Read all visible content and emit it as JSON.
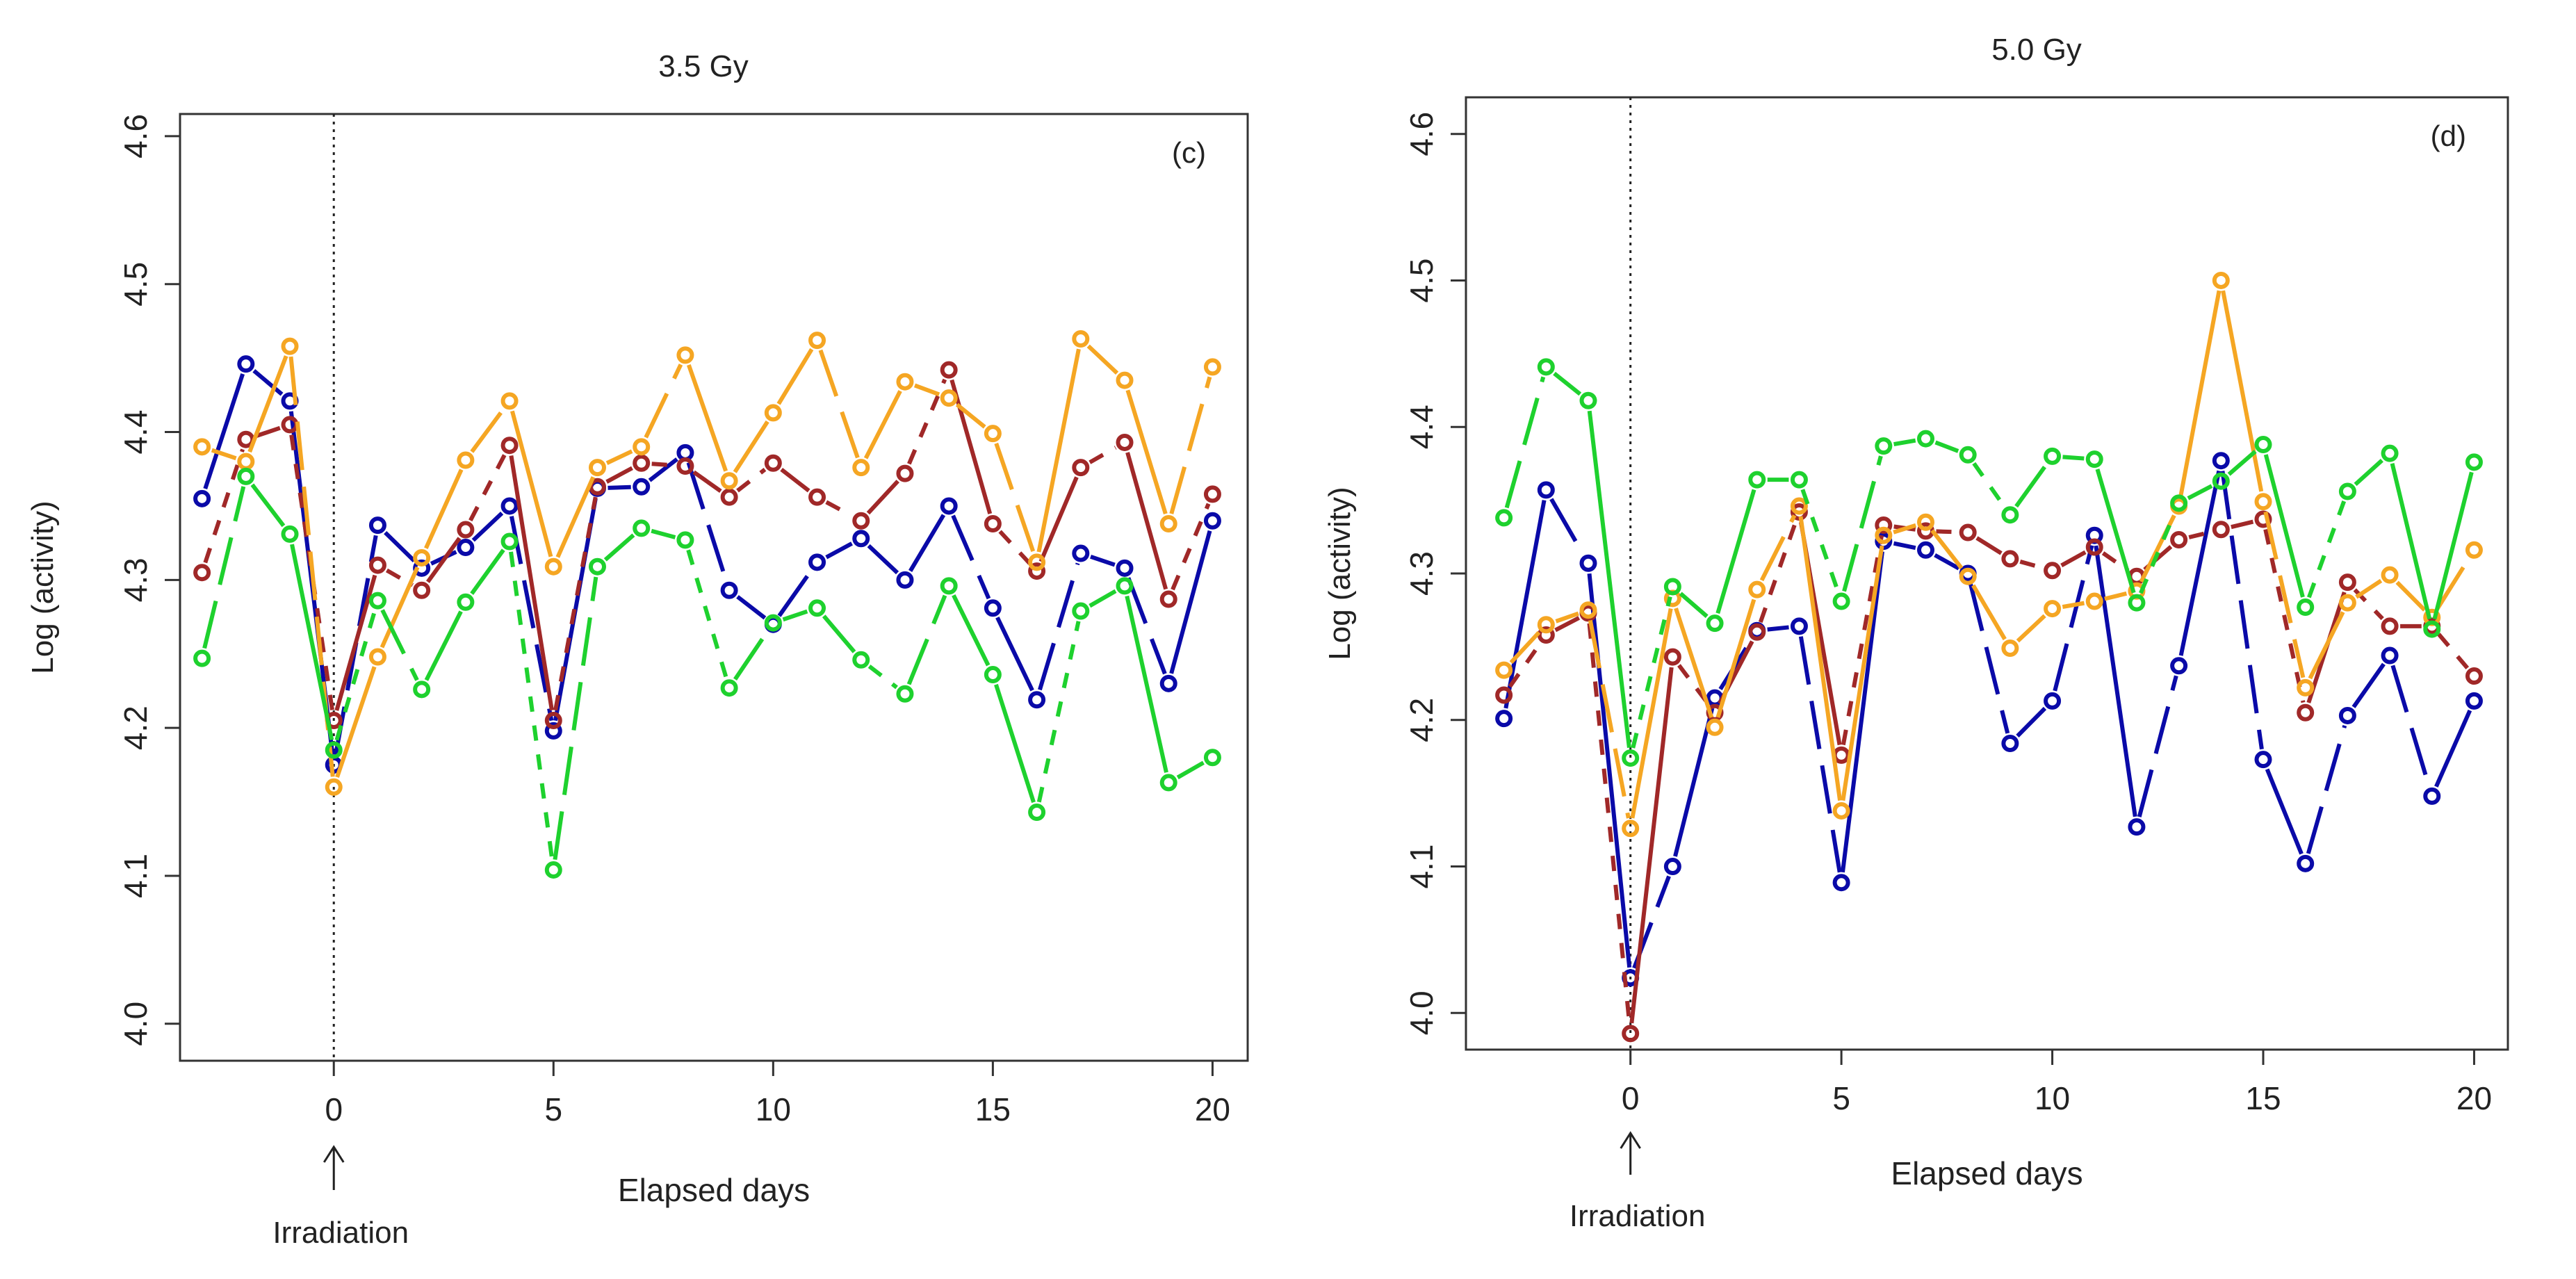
{
  "chart_data": [
    {
      "type": "line",
      "title": "3.5 Gy",
      "panel_label": "(c)",
      "xlabel": "Elapsed days",
      "ylabel": "Log (activity)",
      "xticks": [
        0,
        5,
        10,
        15,
        20
      ],
      "yticks": [
        "4.0",
        "4.1",
        "4.2",
        "4.3",
        "4.4",
        "4.5",
        "4.6"
      ],
      "xlim": [
        -3.5,
        20.8
      ],
      "ylim": [
        3.975,
        4.615
      ],
      "grid": false,
      "annotation": {
        "label": "Irradiation",
        "x": 0
      },
      "x": [
        -3,
        -2,
        -1,
        0,
        1,
        2,
        3,
        4,
        5,
        6,
        7,
        8,
        9,
        10,
        11,
        12,
        13,
        14,
        15,
        16,
        17,
        18,
        19,
        20
      ],
      "series": [
        {
          "color": "#0a0aa8",
          "values": [
            4.355,
            4.446,
            4.421,
            4.175,
            4.337,
            4.308,
            4.322,
            4.35,
            4.198,
            4.362,
            4.363,
            4.386,
            4.293,
            4.27,
            4.312,
            4.328,
            4.3,
            4.35,
            4.281,
            4.219,
            4.318,
            4.308,
            4.23,
            4.34
          ]
        },
        {
          "color": "#a02828",
          "values": [
            4.305,
            4.395,
            4.405,
            4.205,
            4.31,
            4.293,
            4.334,
            4.391,
            4.205,
            4.363,
            4.379,
            4.377,
            4.356,
            4.379,
            4.356,
            4.34,
            4.372,
            4.442,
            4.338,
            4.306,
            4.376,
            4.393,
            4.287,
            4.358
          ]
        },
        {
          "color": "#f5a623",
          "values": [
            4.39,
            4.38,
            4.458,
            4.16,
            4.248,
            4.315,
            4.381,
            4.421,
            4.309,
            4.376,
            4.39,
            4.452,
            4.367,
            4.413,
            4.462,
            4.376,
            4.434,
            4.423,
            4.399,
            4.312,
            4.463,
            4.435,
            4.338,
            4.444
          ]
        },
        {
          "color": "#1ed12e",
          "values": [
            4.247,
            4.37,
            4.331,
            4.185,
            4.286,
            4.226,
            4.285,
            4.326,
            4.104,
            4.309,
            4.335,
            4.327,
            4.227,
            4.271,
            4.281,
            4.246,
            4.223,
            4.296,
            4.236,
            4.143,
            4.279,
            4.296,
            4.163,
            4.18
          ]
        }
      ]
    },
    {
      "type": "line",
      "title": "5.0 Gy",
      "panel_label": "(d)",
      "xlabel": "Elapsed days",
      "ylabel": "Log (activity)",
      "xticks": [
        0,
        5,
        10,
        15,
        20
      ],
      "yticks": [
        "4.0",
        "4.1",
        "4.2",
        "4.3",
        "4.4",
        "4.5",
        "4.6"
      ],
      "xlim": [
        -3.9,
        20.8
      ],
      "ylim": [
        3.975,
        4.625
      ],
      "grid": false,
      "annotation": {
        "label": "Irradiation",
        "x": 0
      },
      "x": [
        -3,
        -2,
        -1,
        0,
        1,
        2,
        3,
        4,
        5,
        6,
        7,
        8,
        9,
        10,
        11,
        12,
        13,
        14,
        15,
        16,
        17,
        18,
        19,
        20
      ],
      "series": [
        {
          "color": "#0a0aa8",
          "values": [
            4.201,
            4.357,
            4.307,
            4.024,
            4.1,
            4.215,
            4.261,
            4.264,
            4.089,
            4.322,
            4.316,
            4.3,
            4.184,
            4.213,
            4.326,
            4.127,
            4.237,
            4.377,
            4.173,
            4.102,
            4.203,
            4.244,
            4.148,
            4.213
          ]
        },
        {
          "color": "#a02828",
          "values": [
            4.217,
            4.258,
            4.273,
            3.986,
            4.243,
            4.205,
            4.26,
            4.342,
            4.176,
            4.333,
            4.329,
            4.328,
            4.31,
            4.302,
            4.318,
            4.298,
            4.323,
            4.33,
            4.337,
            4.205,
            4.294,
            4.264,
            4.264,
            4.23
          ]
        },
        {
          "color": "#f5a623",
          "values": [
            4.234,
            4.265,
            4.275,
            4.126,
            4.283,
            4.195,
            4.289,
            4.346,
            4.138,
            4.326,
            4.335,
            4.298,
            4.249,
            4.276,
            4.281,
            4.288,
            4.346,
            4.5,
            4.349,
            4.222,
            4.28,
            4.299,
            4.27,
            4.316
          ]
        },
        {
          "color": "#1ed12e",
          "values": [
            4.338,
            4.441,
            4.418,
            4.174,
            4.291,
            4.266,
            4.364,
            4.364,
            4.281,
            4.387,
            4.392,
            4.381,
            4.34,
            4.38,
            4.378,
            4.28,
            4.348,
            4.363,
            4.388,
            4.277,
            4.356,
            4.382,
            4.262,
            4.376
          ]
        }
      ]
    }
  ]
}
